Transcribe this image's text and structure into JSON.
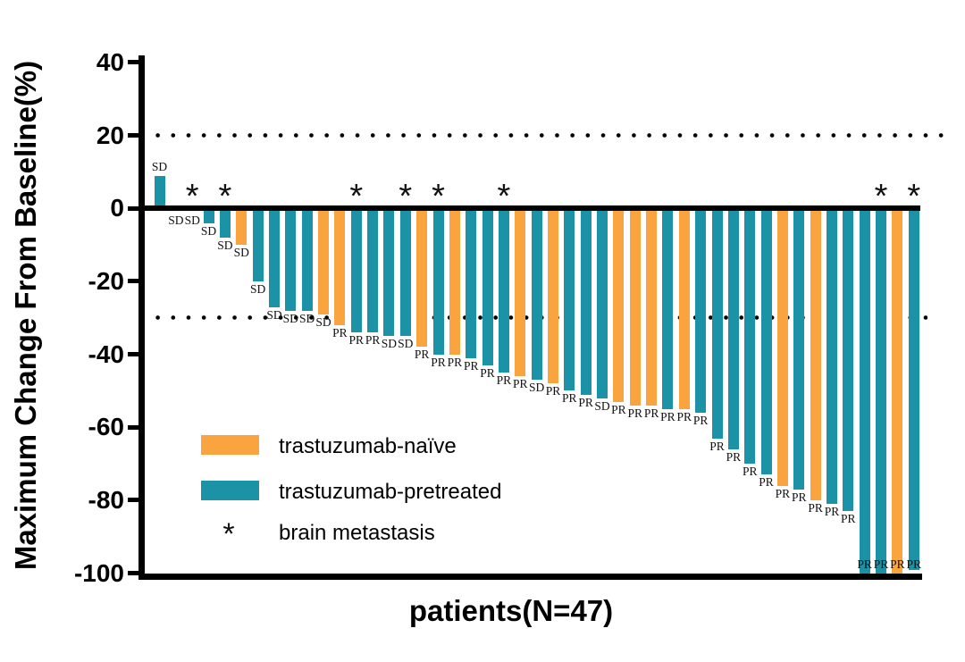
{
  "figure": {
    "background": "#ffffff",
    "y_axis_title": "Maximum Change From Baseline(%)",
    "x_axis_title": "patients(N=47)",
    "tick_labels": [
      "40",
      "20",
      "0",
      "-20",
      "-40",
      "-60",
      "-80",
      "-100"
    ],
    "legend": [
      {
        "swatch_color": "#F9A43F",
        "label": "trastuzumab-naïve"
      },
      {
        "swatch_color": "#1B92A6",
        "label": "trastuzumab-pretreated"
      },
      {
        "swatch_color": "*",
        "label": "brain metastasis"
      }
    ]
  },
  "chart_data": {
    "type": "bar",
    "subtype": "waterfall",
    "title": "",
    "xlabel": "patients(N=47)",
    "ylabel": "Maximum Change From Baseline(%)",
    "ylim": [
      -100,
      40
    ],
    "yticks": [
      40,
      20,
      0,
      -20,
      -40,
      -60,
      -80,
      -100
    ],
    "grid": false,
    "n_patients": 47,
    "colors": {
      "trastuzumab_naive": "#F9A43F",
      "trastuzumab_pretreated": "#1B92A6"
    },
    "reference_lines": [
      {
        "y": 20,
        "style": "dotted"
      },
      {
        "y": -30,
        "style": "dotted"
      }
    ],
    "annotation_legend": {
      "SD": "stable disease label shown per bar",
      "PR": "partial response label shown per bar",
      "asterisk": "brain metastasis"
    },
    "bars": [
      {
        "patient": 1,
        "value": 9,
        "group": "trastuzumab_pretreated",
        "response": "SD",
        "brain_metastasis": false
      },
      {
        "patient": 2,
        "value": 0,
        "group": "trastuzumab_pretreated",
        "response": "SD",
        "brain_metastasis": false
      },
      {
        "patient": 3,
        "value": 0,
        "group": "trastuzumab_pretreated",
        "response": "SD",
        "brain_metastasis": true
      },
      {
        "patient": 4,
        "value": -4,
        "group": "trastuzumab_pretreated",
        "response": "SD",
        "brain_metastasis": false
      },
      {
        "patient": 5,
        "value": -8,
        "group": "trastuzumab_pretreated",
        "response": "SD",
        "brain_metastasis": true
      },
      {
        "patient": 6,
        "value": -10,
        "group": "trastuzumab_naive",
        "response": "SD",
        "brain_metastasis": false
      },
      {
        "patient": 7,
        "value": -20,
        "group": "trastuzumab_pretreated",
        "response": "SD",
        "brain_metastasis": false
      },
      {
        "patient": 8,
        "value": -27,
        "group": "trastuzumab_pretreated",
        "response": "SD",
        "brain_metastasis": false
      },
      {
        "patient": 9,
        "value": -28,
        "group": "trastuzumab_pretreated",
        "response": "SD",
        "brain_metastasis": false
      },
      {
        "patient": 10,
        "value": -28,
        "group": "trastuzumab_pretreated",
        "response": "SD",
        "brain_metastasis": false
      },
      {
        "patient": 11,
        "value": -29,
        "group": "trastuzumab_naive",
        "response": "SD",
        "brain_metastasis": false
      },
      {
        "patient": 12,
        "value": -32,
        "group": "trastuzumab_naive",
        "response": "PR",
        "brain_metastasis": false
      },
      {
        "patient": 13,
        "value": -34,
        "group": "trastuzumab_pretreated",
        "response": "PR",
        "brain_metastasis": true
      },
      {
        "patient": 14,
        "value": -34,
        "group": "trastuzumab_pretreated",
        "response": "PR",
        "brain_metastasis": false
      },
      {
        "patient": 15,
        "value": -35,
        "group": "trastuzumab_pretreated",
        "response": "SD",
        "brain_metastasis": false
      },
      {
        "patient": 16,
        "value": -35,
        "group": "trastuzumab_pretreated",
        "response": "SD",
        "brain_metastasis": true
      },
      {
        "patient": 17,
        "value": -38,
        "group": "trastuzumab_naive",
        "response": "PR",
        "brain_metastasis": false
      },
      {
        "patient": 18,
        "value": -40,
        "group": "trastuzumab_pretreated",
        "response": "PR",
        "brain_metastasis": true
      },
      {
        "patient": 19,
        "value": -40,
        "group": "trastuzumab_naive",
        "response": "PR",
        "brain_metastasis": false
      },
      {
        "patient": 20,
        "value": -41,
        "group": "trastuzumab_pretreated",
        "response": "PR",
        "brain_metastasis": false
      },
      {
        "patient": 21,
        "value": -43,
        "group": "trastuzumab_pretreated",
        "response": "PR",
        "brain_metastasis": false
      },
      {
        "patient": 22,
        "value": -45,
        "group": "trastuzumab_pretreated",
        "response": "PR",
        "brain_metastasis": true
      },
      {
        "patient": 23,
        "value": -46,
        "group": "trastuzumab_naive",
        "response": "PR",
        "brain_metastasis": false
      },
      {
        "patient": 24,
        "value": -47,
        "group": "trastuzumab_pretreated",
        "response": "SD",
        "brain_metastasis": false
      },
      {
        "patient": 25,
        "value": -48,
        "group": "trastuzumab_naive",
        "response": "PR",
        "brain_metastasis": false
      },
      {
        "patient": 26,
        "value": -50,
        "group": "trastuzumab_pretreated",
        "response": "PR",
        "brain_metastasis": false
      },
      {
        "patient": 27,
        "value": -51,
        "group": "trastuzumab_pretreated",
        "response": "PR",
        "brain_metastasis": false
      },
      {
        "patient": 28,
        "value": -52,
        "group": "trastuzumab_pretreated",
        "response": "SD",
        "brain_metastasis": false
      },
      {
        "patient": 29,
        "value": -53,
        "group": "trastuzumab_naive",
        "response": "PR",
        "brain_metastasis": false
      },
      {
        "patient": 30,
        "value": -54,
        "group": "trastuzumab_naive",
        "response": "PR",
        "brain_metastasis": false
      },
      {
        "patient": 31,
        "value": -54,
        "group": "trastuzumab_naive",
        "response": "PR",
        "brain_metastasis": false
      },
      {
        "patient": 32,
        "value": -55,
        "group": "trastuzumab_pretreated",
        "response": "PR",
        "brain_metastasis": false
      },
      {
        "patient": 33,
        "value": -55,
        "group": "trastuzumab_naive",
        "response": "PR",
        "brain_metastasis": false
      },
      {
        "patient": 34,
        "value": -56,
        "group": "trastuzumab_pretreated",
        "response": "PR",
        "brain_metastasis": false
      },
      {
        "patient": 35,
        "value": -63,
        "group": "trastuzumab_pretreated",
        "response": "PR",
        "brain_metastasis": false
      },
      {
        "patient": 36,
        "value": -66,
        "group": "trastuzumab_pretreated",
        "response": "PR",
        "brain_metastasis": false
      },
      {
        "patient": 37,
        "value": -70,
        "group": "trastuzumab_pretreated",
        "response": "PR",
        "brain_metastasis": false
      },
      {
        "patient": 38,
        "value": -73,
        "group": "trastuzumab_pretreated",
        "response": "PR",
        "brain_metastasis": false
      },
      {
        "patient": 39,
        "value": -76,
        "group": "trastuzumab_naive",
        "response": "PR",
        "brain_metastasis": false
      },
      {
        "patient": 40,
        "value": -77,
        "group": "trastuzumab_pretreated",
        "response": "PR",
        "brain_metastasis": false
      },
      {
        "patient": 41,
        "value": -80,
        "group": "trastuzumab_naive",
        "response": "PR",
        "brain_metastasis": false
      },
      {
        "patient": 42,
        "value": -81,
        "group": "trastuzumab_pretreated",
        "response": "PR",
        "brain_metastasis": false
      },
      {
        "patient": 43,
        "value": -83,
        "group": "trastuzumab_pretreated",
        "response": "PR",
        "brain_metastasis": false
      },
      {
        "patient": 44,
        "value": -100,
        "group": "trastuzumab_pretreated",
        "response": "PR",
        "brain_metastasis": false
      },
      {
        "patient": 45,
        "value": -100,
        "group": "trastuzumab_pretreated",
        "response": "PR",
        "brain_metastasis": true
      },
      {
        "patient": 46,
        "value": -100,
        "group": "trastuzumab_naive",
        "response": "PR",
        "brain_metastasis": false
      },
      {
        "patient": 47,
        "value": -99,
        "group": "trastuzumab_pretreated",
        "response": "PR",
        "brain_metastasis": true
      }
    ]
  }
}
